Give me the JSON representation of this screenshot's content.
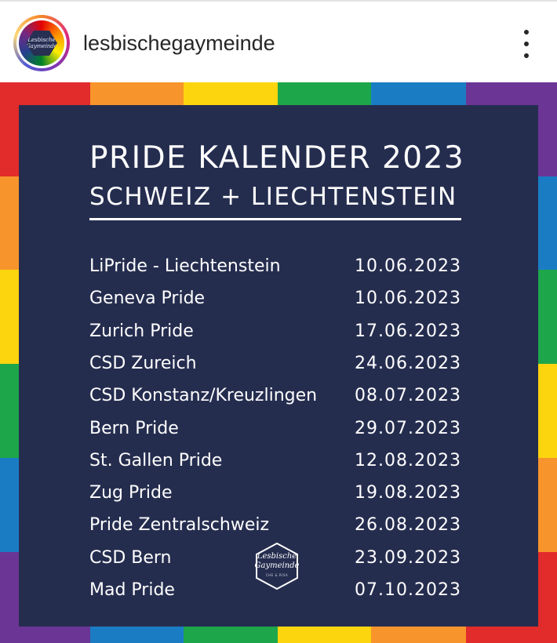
{
  "header": {
    "username": "lesbischegaymeinde",
    "avatar_text": "Lesbische Gaymeinde",
    "more_icon": "more-vertical-icon"
  },
  "poster": {
    "title_line1": "PRIDE KALENDER 2023",
    "title_line2": "SCHWEIZ + LIECHTENSTEIN",
    "events": [
      {
        "name": "LiPride - Liechtenstein",
        "date": "10.06.2023"
      },
      {
        "name": "Geneva Pride",
        "date": "10.06.2023"
      },
      {
        "name": "Zurich Pride",
        "date": "17.06.2023"
      },
      {
        "name": "CSD Zureich",
        "date": "24.06.2023"
      },
      {
        "name": "CSD Konstanz/Kreuzlingen",
        "date": "08.07.2023"
      },
      {
        "name": "Bern Pride",
        "date": "29.07.2023"
      },
      {
        "name": "St. Gallen Pride",
        "date": "12.08.2023"
      },
      {
        "name": "Zug Pride",
        "date": "19.08.2023"
      },
      {
        "name": "Pride Zentralschweiz",
        "date": "26.08.2023"
      },
      {
        "name": "CSD Bern",
        "date": "23.09.2023"
      },
      {
        "name": "Mad Pride",
        "date": "07.10.2023"
      }
    ],
    "logo_text": "Lesbische Gaymeinde",
    "logo_subtext": "CHE & RISA",
    "colors": {
      "panel": "#252d4f",
      "red": "#e22b2b",
      "orange": "#f7952c",
      "yellow": "#fcd50f",
      "green": "#1ea64a",
      "blue": "#1a7dc4",
      "purple": "#6b3596"
    }
  }
}
